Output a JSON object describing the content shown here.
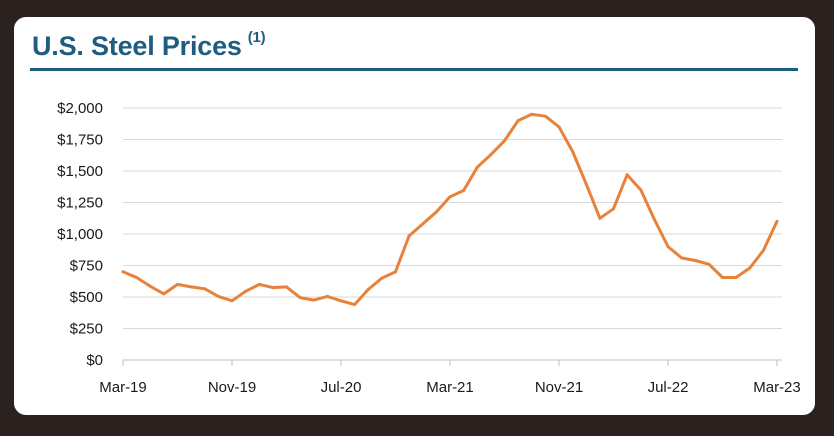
{
  "header": {
    "title": "U.S. Steel Prices",
    "footnote": "(1)"
  },
  "chart_data": {
    "type": "line",
    "title": "U.S. Steel Prices (1)",
    "xlabel": "",
    "ylabel": "",
    "grid": true,
    "ylim": [
      0,
      2000
    ],
    "yticks": [
      0,
      250,
      500,
      750,
      1000,
      1250,
      1500,
      1750,
      2000
    ],
    "ytick_labels": [
      "$0",
      "$250",
      "$500",
      "$750",
      "$1,000",
      "$1,250",
      "$1,500",
      "$1,750",
      "$2,000"
    ],
    "xtick_labels": [
      "Mar-19",
      "Nov-19",
      "Jul-20",
      "Mar-21",
      "Nov-21",
      "Jul-22",
      "Mar-23"
    ],
    "xtick_index": [
      0,
      8,
      16,
      24,
      32,
      40,
      48
    ],
    "color": "#e8823a",
    "series": [
      {
        "values": [
          700,
          655,
          585,
          525,
          600,
          580,
          565,
          505,
          470,
          545,
          600,
          575,
          580,
          495,
          475,
          505,
          470,
          440,
          560,
          650,
          700,
          985,
          1080,
          1175,
          1295,
          1345,
          1530,
          1630,
          1740,
          1900,
          1950,
          1935,
          1850,
          1655,
          1395,
          1125,
          1200,
          1470,
          1350,
          1115,
          900,
          810,
          790,
          760,
          655,
          655,
          730,
          870,
          1100
        ]
      }
    ]
  }
}
